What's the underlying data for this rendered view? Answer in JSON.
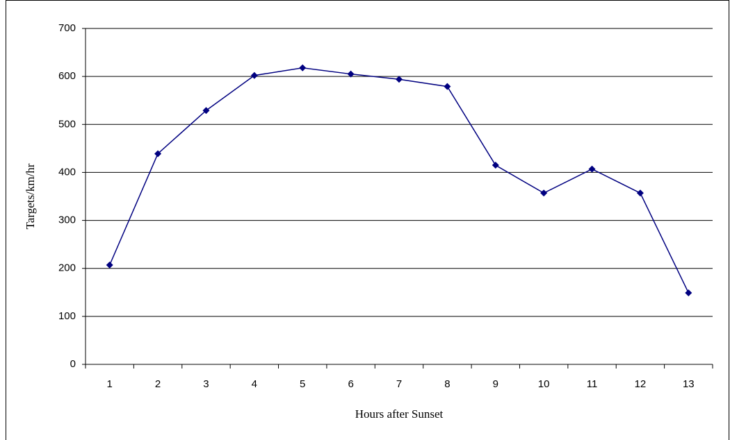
{
  "chart_data": {
    "type": "line",
    "x_label": "Hours after Sunset",
    "y_label": "Targets/km/hr",
    "categories": [
      "1",
      "2",
      "3",
      "4",
      "5",
      "6",
      "7",
      "8",
      "9",
      "10",
      "11",
      "12",
      "13"
    ],
    "series": [
      {
        "color": "#000080",
        "values": [
          207,
          439,
          529,
          602,
          618,
          605,
          594,
          579,
          415,
          357,
          407,
          357,
          149
        ]
      }
    ],
    "ylim": [
      0,
      700
    ],
    "yticks": [
      0,
      100,
      200,
      300,
      400,
      500,
      600,
      700
    ],
    "grid": true
  }
}
